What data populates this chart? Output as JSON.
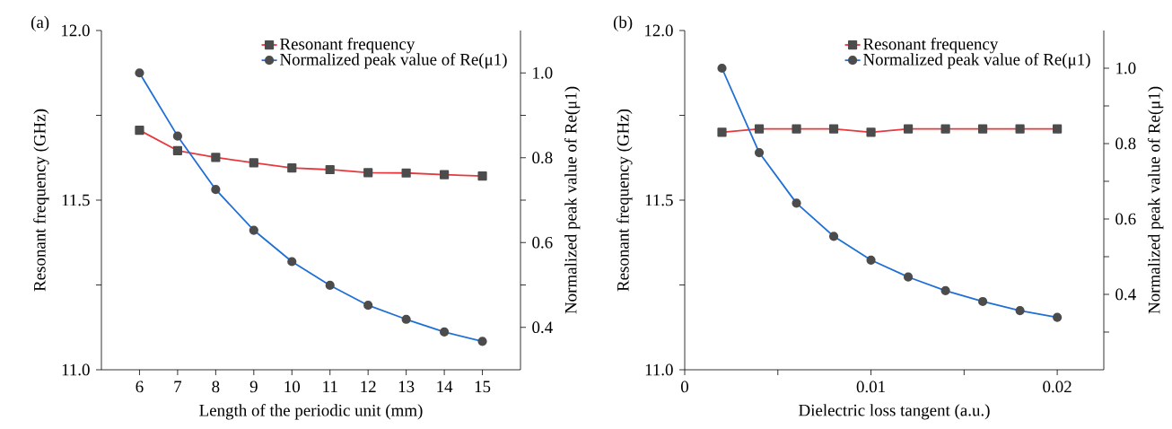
{
  "chart_data": [
    {
      "type": "line",
      "annotations": [
        "(a)"
      ],
      "xlabel": "Length of the periodic unit (mm)",
      "ylabel": "Resonant frequency (GHz)",
      "y2label": "Normalized peak value of Re(μ1)",
      "x": [
        6,
        7,
        8,
        9,
        10,
        11,
        12,
        13,
        14,
        15
      ],
      "series": [
        {
          "name": "Resonant frequency",
          "color": "#e8383d",
          "marker": "square",
          "values": [
            11.706,
            11.646,
            11.626,
            11.61,
            11.595,
            11.59,
            11.581,
            11.58,
            11.575,
            11.571
          ]
        },
        {
          "name": "Normalized peak value of Re(μ1)",
          "color": "#1f6fd6",
          "marker": "circle",
          "axis": "y2",
          "values": [
            1.0,
            0.851,
            0.725,
            0.629,
            0.555,
            0.499,
            0.452,
            0.419,
            0.389,
            0.367
          ]
        }
      ],
      "xlim": [
        5,
        16
      ],
      "xticks": [
        6,
        7,
        8,
        9,
        10,
        11,
        12,
        13,
        14,
        15
      ],
      "ylim": [
        11,
        12
      ],
      "yticks": [
        {
          "value": 11,
          "label": "11.0"
        },
        {
          "value": 11.25,
          "label": null
        },
        11.5,
        {
          "value": 11.75,
          "label": null
        },
        {
          "value": 12,
          "label": "12.0"
        }
      ],
      "y2lim": [
        0.3,
        1.1
      ],
      "y2ticks": [
        0.4,
        {
          "value": 0.5,
          "label": null
        },
        0.6,
        {
          "value": 0.7,
          "label": null
        },
        0.8,
        {
          "value": 0.9,
          "label": null
        },
        {
          "value": 1,
          "label": "1.0"
        }
      ],
      "legend": "top right"
    },
    {
      "type": "line",
      "annotations": [
        "(b)"
      ],
      "xlabel": "Dielectric loss tangent (a.u.)",
      "ylabel": "Resonant frequency (GHz)",
      "y2label": "Normalized peak value of Re(μ1)",
      "x": [
        0.002,
        0.004,
        0.006,
        0.008,
        0.01,
        0.012,
        0.014,
        0.016,
        0.018,
        0.02
      ],
      "series": [
        {
          "name": "Resonant frequency",
          "color": "#e8383d",
          "marker": "square",
          "values": [
            11.7,
            11.71,
            11.71,
            11.71,
            11.7,
            11.71,
            11.71,
            11.71,
            11.71,
            11.71
          ]
        },
        {
          "name": "Normalized peak value of Re(μ1)",
          "color": "#1f6fd6",
          "marker": "circle",
          "axis": "y2",
          "values": [
            1.0,
            0.776,
            0.642,
            0.554,
            0.491,
            0.446,
            0.41,
            0.381,
            0.357,
            0.339
          ]
        }
      ],
      "xlim": [
        0,
        0.0225
      ],
      "xticks": [
        0,
        {
          "value": 0.005,
          "label": null
        },
        0.01,
        {
          "value": 0.015,
          "label": null
        },
        0.02
      ],
      "ylim": [
        11,
        12
      ],
      "yticks": [
        {
          "value": 11,
          "label": "11.0"
        },
        {
          "value": 11.25,
          "label": null
        },
        11.5,
        {
          "value": 11.75,
          "label": null
        },
        {
          "value": 12,
          "label": "12.0"
        }
      ],
      "y2lim": [
        0.2,
        1.1
      ],
      "y2ticks": [
        {
          "value": 0.3,
          "label": null
        },
        0.4,
        {
          "value": 0.5,
          "label": null
        },
        0.6,
        {
          "value": 0.7,
          "label": null
        },
        0.8,
        {
          "value": 0.9,
          "label": null
        },
        {
          "value": 1,
          "label": "1.0"
        }
      ],
      "legend": "top right"
    }
  ]
}
